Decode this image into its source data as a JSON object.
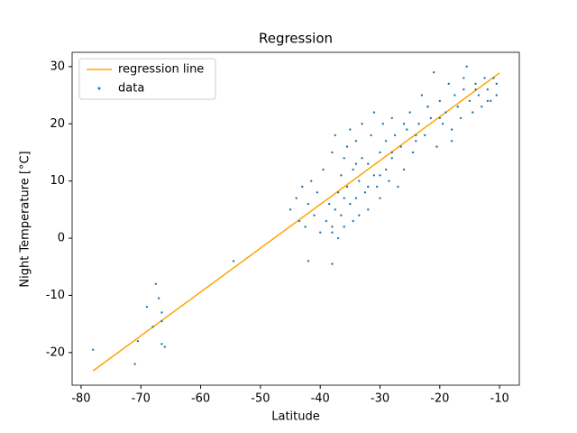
{
  "chart_data": {
    "type": "scatter",
    "title": "Regression",
    "x_label": "Latitude",
    "y_label": "Night Temperature [°C]",
    "xlim": [
      -81.5,
      -6.7
    ],
    "ylim": [
      -25.7,
      32.5
    ],
    "xticks": [
      -80,
      -70,
      -60,
      -50,
      -40,
      -30,
      -20,
      -10
    ],
    "yticks": [
      -20,
      -10,
      0,
      10,
      20,
      30
    ],
    "legend": "upper left",
    "series": [
      {
        "name": "regression line",
        "type": "line",
        "color": "#ffa500",
        "x": [
          -78,
          -10
        ],
        "values": [
          -23.2,
          28.9
        ]
      },
      {
        "name": "data",
        "type": "scatter",
        "color": "#1f77b4",
        "x": [
          -45,
          -44,
          -43.5,
          -43,
          -42.5,
          -42,
          -41.5,
          -41,
          -40.5,
          -40,
          -39.5,
          -39,
          -38.5,
          -38,
          -38,
          -37.5,
          -37.5,
          -37,
          -37,
          -36.5,
          -36.5,
          -36,
          -36,
          -35.5,
          -35.5,
          -35,
          -35,
          -34.5,
          -34.5,
          -34,
          -34,
          -33.5,
          -33.5,
          -33,
          -33,
          -32.5,
          -32,
          -32,
          -31.5,
          -31,
          -31,
          -30.5,
          -30,
          -30,
          -29.5,
          -29,
          -29,
          -28.5,
          -28,
          -28,
          -27.5,
          -27,
          -26.5,
          -26,
          -25.5,
          -25,
          -24.5,
          -24,
          -23.5,
          -23,
          -22.5,
          -22,
          -21.5,
          -21,
          -20.5,
          -20,
          -19.5,
          -19,
          -18.5,
          -18,
          -17.5,
          -17,
          -16.5,
          -16,
          -15.5,
          -15,
          -14.5,
          -14,
          -13.5,
          -13,
          -12.5,
          -12,
          -11.5,
          -11,
          -10.5,
          -10.5,
          -38,
          -36,
          -34,
          -32,
          -30,
          -28,
          -26,
          -24,
          -22,
          -20,
          -18,
          -16,
          -14,
          -12,
          -78,
          -71,
          -70.5,
          -69,
          -68,
          -67.5,
          -67,
          -66.5,
          -66.5,
          -66.5,
          -66,
          -54.5,
          -42,
          -38
        ],
        "values": [
          5,
          7,
          3,
          9,
          2,
          6,
          10,
          4,
          8,
          1,
          12,
          3,
          6,
          15,
          2,
          5,
          18,
          0,
          8,
          11,
          4,
          14,
          2,
          9,
          16,
          6,
          19,
          3,
          12,
          7,
          17,
          10,
          4,
          14,
          20,
          8,
          13,
          5,
          18,
          11,
          22,
          9,
          15,
          7,
          20,
          12,
          17,
          10,
          21,
          14,
          18,
          9,
          16,
          12,
          19,
          22,
          15,
          17,
          20,
          25,
          18,
          23,
          21,
          29,
          16,
          24,
          20,
          22,
          27,
          19,
          25,
          23,
          21,
          26,
          30,
          24,
          22,
          27,
          25,
          23,
          28,
          26,
          24,
          28,
          25,
          27,
          1,
          7,
          13,
          9,
          11,
          15,
          20,
          18,
          23,
          21,
          17,
          28,
          26,
          24,
          -19.5,
          -22,
          -18,
          -12,
          -15.5,
          -8,
          -10.5,
          -13,
          -14.5,
          -18.5,
          -19,
          -4,
          -4,
          -4.5
        ]
      }
    ]
  }
}
